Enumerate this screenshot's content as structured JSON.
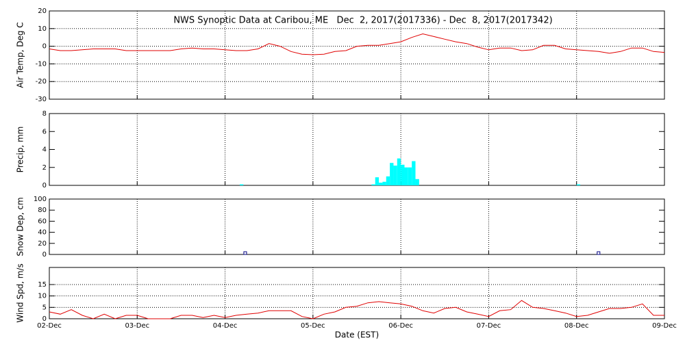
{
  "chart_data": [
    {
      "type": "line",
      "title": "NWS Synoptic Data at Caribou, ME   Dec  2, 2017(2017336) - Dec  8, 2017(2017342)",
      "ylabel": "Air Temp, Deg C",
      "color": "#e00000",
      "grid": "both",
      "xlim": [
        0,
        168
      ],
      "xticks": [
        0,
        24,
        48,
        72,
        96,
        120,
        144,
        168
      ],
      "ylim": [
        -30,
        20
      ],
      "yticks": [
        -30,
        -20,
        -10,
        0,
        10,
        20
      ],
      "x": [
        0,
        3,
        6,
        9,
        12,
        15,
        18,
        21,
        24,
        27,
        30,
        33,
        36,
        39,
        42,
        45,
        48,
        51,
        54,
        57,
        60,
        63,
        66,
        69,
        72,
        75,
        78,
        81,
        84,
        87,
        90,
        93,
        96,
        99,
        102,
        105,
        108,
        111,
        114,
        117,
        120,
        123,
        126,
        129,
        132,
        135,
        138,
        141,
        144,
        147,
        150,
        153,
        156,
        159,
        162,
        165,
        168
      ],
      "values": [
        -1.5,
        -2.5,
        -2.5,
        -2,
        -1.5,
        -1.5,
        -1.5,
        -2.5,
        -2.5,
        -2.5,
        -2.5,
        -2.5,
        -1.5,
        -1,
        -1.5,
        -1.5,
        -2,
        -2.5,
        -2.5,
        -1.5,
        1.5,
        0,
        -3,
        -4.5,
        -4.8,
        -4.5,
        -3,
        -2.5,
        0,
        0.5,
        0.5,
        1.5,
        2.5,
        5,
        7,
        5.5,
        4,
        2.5,
        1.5,
        -0.5,
        -2,
        -1,
        -1,
        -2.5,
        -2,
        0.5,
        0.5,
        -1.5,
        -2,
        -2.5,
        -3,
        -4,
        -3,
        -1,
        -1,
        -3,
        -3.5
      ]
    },
    {
      "type": "bar",
      "ylabel": "Precip, mm",
      "color": "#00ffff",
      "grid": "x",
      "xlim": [
        0,
        168
      ],
      "xticks": [
        0,
        24,
        48,
        72,
        96,
        120,
        144,
        168
      ],
      "ylim": [
        0,
        8
      ],
      "yticks": [
        0,
        2,
        4,
        6,
        8
      ],
      "x": [
        52,
        88,
        89,
        90,
        91,
        92,
        93,
        94,
        95,
        96,
        97,
        98,
        99,
        100,
        144
      ],
      "values": [
        0.1,
        0.1,
        0.9,
        0.3,
        0.4,
        1,
        2.5,
        2.2,
        3,
        2.3,
        2,
        2,
        2.7,
        0.7,
        0.1
      ]
    },
    {
      "type": "scatter",
      "ylabel": "Snow Dep, cm",
      "color": "#000080",
      "grid": "x",
      "xlim": [
        0,
        168
      ],
      "xticks": [
        0,
        24,
        48,
        72,
        96,
        120,
        144,
        168
      ],
      "ylim": [
        0,
        100
      ],
      "yticks": [
        0,
        20,
        40,
        60,
        80,
        100
      ],
      "x": [
        53.5,
        150
      ],
      "values": [
        0,
        0
      ]
    },
    {
      "type": "line",
      "ylabel": "Wind Spd, m/s",
      "xlabel": "Date (EST)",
      "color": "#e00000",
      "grid": "both",
      "xlim": [
        0,
        168
      ],
      "xticks": [
        {
          "value": 0,
          "label": "02-Dec"
        },
        {
          "value": 24,
          "label": "03-Dec"
        },
        {
          "value": 48,
          "label": "04-Dec"
        },
        {
          "value": 72,
          "label": "05-Dec"
        },
        {
          "value": 96,
          "label": "06-Dec"
        },
        {
          "value": 120,
          "label": "07-Dec"
        },
        {
          "value": 144,
          "label": "08-Dec"
        },
        {
          "value": 168,
          "label": "09-Dec"
        }
      ],
      "ylim": [
        0,
        22.5
      ],
      "yticks": [
        0,
        5,
        10,
        15
      ],
      "x": [
        0,
        3,
        6,
        9,
        12,
        15,
        18,
        21,
        24,
        27,
        30,
        33,
        36,
        39,
        42,
        45,
        48,
        51,
        54,
        57,
        60,
        63,
        66,
        69,
        72,
        75,
        78,
        81,
        84,
        87,
        90,
        93,
        96,
        99,
        102,
        105,
        108,
        111,
        114,
        117,
        120,
        123,
        126,
        129,
        132,
        135,
        138,
        141,
        144,
        147,
        150,
        153,
        156,
        159,
        162,
        165,
        168
      ],
      "values": [
        3,
        2,
        4,
        1.5,
        0,
        2,
        0,
        1.5,
        1.5,
        0,
        0,
        0,
        1.5,
        1.5,
        0.5,
        1.5,
        0.5,
        1.5,
        2,
        2.5,
        3.5,
        3.5,
        3.5,
        1,
        0,
        2,
        3,
        5,
        5.5,
        7,
        7.5,
        7,
        6.5,
        5.5,
        3.5,
        2.5,
        4.5,
        5,
        3,
        2,
        1,
        3.5,
        4,
        8,
        5,
        4.5,
        3.5,
        2.5,
        1,
        1.5,
        3,
        4.5,
        4.5,
        5,
        6.5,
        1.5,
        1.5
      ]
    }
  ]
}
